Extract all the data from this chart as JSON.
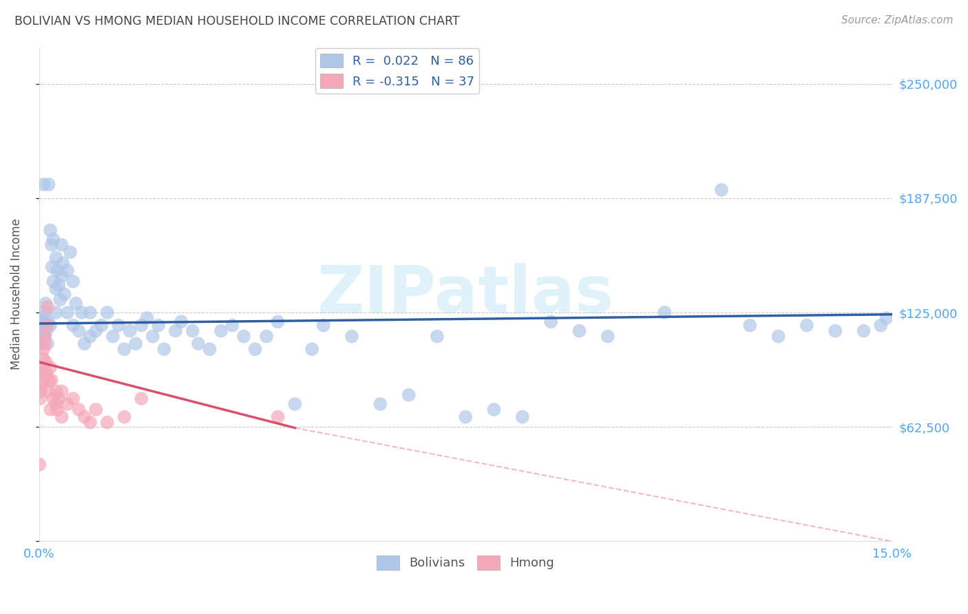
{
  "title": "BOLIVIAN VS HMONG MEDIAN HOUSEHOLD INCOME CORRELATION CHART",
  "source": "Source: ZipAtlas.com",
  "ylabel_label": "Median Household Income",
  "watermark": "ZIPatlas",
  "xlim": [
    0.0,
    0.15
  ],
  "ylim": [
    0,
    270000
  ],
  "yticks": [
    0,
    62500,
    125000,
    187500,
    250000
  ],
  "right_ytick_labels": [
    "$62,500",
    "$125,000",
    "$187,500",
    "$250,000"
  ],
  "legend_bolivians_R": "R =  0.022",
  "legend_bolivians_N": "N = 86",
  "legend_hmong_R": "R = -0.315",
  "legend_hmong_N": "N = 37",
  "blue_color": "#aec6e8",
  "blue_line_color": "#2e5fa3",
  "pink_color": "#f4a7b9",
  "pink_line_color": "#d9506a",
  "legend_text_color": "#2e5fa3",
  "grid_color": "#c8c8c8",
  "title_color": "#444444",
  "source_color": "#999999",
  "ytick_color": "#4da6ff",
  "xtick_color": "#4da6ff",
  "blue_scatter_x": [
    0.0003,
    0.0004,
    0.0005,
    0.0006,
    0.0007,
    0.0008,
    0.001,
    0.001,
    0.0012,
    0.0013,
    0.0015,
    0.0015,
    0.0017,
    0.002,
    0.002,
    0.0022,
    0.0023,
    0.0025,
    0.0025,
    0.003,
    0.003,
    0.003,
    0.0032,
    0.0035,
    0.0037,
    0.004,
    0.004,
    0.0042,
    0.0045,
    0.005,
    0.005,
    0.0055,
    0.006,
    0.006,
    0.0065,
    0.007,
    0.0075,
    0.008,
    0.009,
    0.009,
    0.01,
    0.011,
    0.012,
    0.013,
    0.014,
    0.015,
    0.016,
    0.017,
    0.018,
    0.019,
    0.02,
    0.021,
    0.022,
    0.024,
    0.025,
    0.027,
    0.028,
    0.03,
    0.032,
    0.034,
    0.036,
    0.038,
    0.04,
    0.042,
    0.045,
    0.048,
    0.05,
    0.055,
    0.06,
    0.065,
    0.07,
    0.075,
    0.08,
    0.085,
    0.09,
    0.095,
    0.1,
    0.11,
    0.12,
    0.125,
    0.13,
    0.135,
    0.14,
    0.145,
    0.148,
    0.149
  ],
  "blue_scatter_y": [
    120000,
    115000,
    108000,
    118000,
    122000,
    195000,
    112000,
    125000,
    130000,
    115000,
    108000,
    120000,
    195000,
    118000,
    170000,
    162000,
    150000,
    142000,
    165000,
    155000,
    138000,
    125000,
    148000,
    140000,
    132000,
    162000,
    145000,
    152000,
    135000,
    125000,
    148000,
    158000,
    118000,
    142000,
    130000,
    115000,
    125000,
    108000,
    112000,
    125000,
    115000,
    118000,
    125000,
    112000,
    118000,
    105000,
    115000,
    108000,
    118000,
    122000,
    112000,
    118000,
    105000,
    115000,
    120000,
    115000,
    108000,
    105000,
    115000,
    118000,
    112000,
    105000,
    112000,
    120000,
    75000,
    105000,
    118000,
    112000,
    75000,
    80000,
    112000,
    68000,
    72000,
    68000,
    120000,
    115000,
    112000,
    125000,
    192000,
    118000,
    112000,
    118000,
    115000,
    115000,
    118000,
    122000
  ],
  "pink_scatter_x": [
    0.0001,
    0.0002,
    0.0003,
    0.0004,
    0.0005,
    0.0005,
    0.0006,
    0.0007,
    0.0008,
    0.001,
    0.001,
    0.0012,
    0.0013,
    0.0015,
    0.0015,
    0.0017,
    0.0018,
    0.002,
    0.002,
    0.0022,
    0.0025,
    0.003,
    0.003,
    0.0032,
    0.0035,
    0.004,
    0.004,
    0.005,
    0.006,
    0.007,
    0.008,
    0.009,
    0.01,
    0.012,
    0.015,
    0.018,
    0.042
  ],
  "pink_scatter_y": [
    42000,
    78000,
    82000,
    85000,
    88000,
    92000,
    95000,
    100000,
    105000,
    112000,
    108000,
    98000,
    92000,
    118000,
    128000,
    82000,
    88000,
    95000,
    72000,
    88000,
    78000,
    75000,
    82000,
    72000,
    78000,
    82000,
    68000,
    75000,
    78000,
    72000,
    68000,
    65000,
    72000,
    65000,
    68000,
    78000,
    68000
  ],
  "blue_line_x0": 0.0,
  "blue_line_x1": 0.15,
  "blue_line_y0": 119000,
  "blue_line_y1": 124000,
  "pink_line_solid_x0": 0.0,
  "pink_line_solid_x1": 0.045,
  "pink_line_y0": 98000,
  "pink_line_y1": 62000,
  "pink_line_dash_x0": 0.045,
  "pink_line_dash_x1": 0.15,
  "pink_line_dash_y0": 62000,
  "pink_line_dash_y1": 0
}
